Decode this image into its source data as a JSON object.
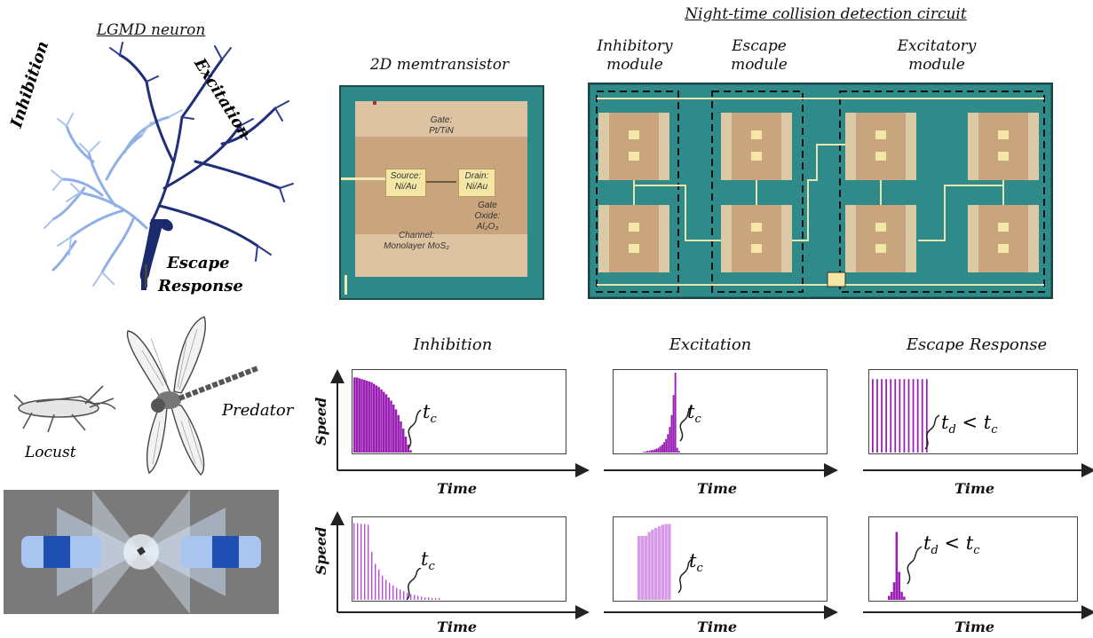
{
  "neuron": {
    "title": "LGMD neuron",
    "inhibition": "Inhibition",
    "excitation": "Excitation",
    "escape_line1": "Escape",
    "escape_line2": "Response"
  },
  "memtransistor": {
    "title": "2D memtransistor",
    "gate_line1": "Gate:",
    "gate_line2": "Pt/TiN",
    "source_line1": "Source:",
    "source_line2": "Ni/Au",
    "drain_line1": "Drain:",
    "drain_line2": "Ni/Au",
    "oxide_line1": "Gate",
    "oxide_line2": "Oxide:",
    "oxide_line3": "Al₂O₃",
    "channel_line1": "Channel:",
    "channel_line2": "Monolayer MoS₂"
  },
  "circuit": {
    "title": "Night-time collision detection circuit",
    "modules": [
      {
        "line1": "Inhibitory",
        "line2": "module"
      },
      {
        "line1": "Escape",
        "line2": "module"
      },
      {
        "line1": "Excitatory",
        "line2": "module"
      }
    ]
  },
  "animals": {
    "locust": "Locust",
    "predator": "Predator"
  },
  "plots": {
    "col_titles": [
      "Inhibition",
      "Excitation",
      "Escape Response"
    ],
    "ylabel": "Speed",
    "xlabel": "Time",
    "tc": "t",
    "tc_sub": "c",
    "td": "t",
    "td_sub": "d",
    "lt": "<"
  },
  "colors": {
    "purple": "#9a1fb5",
    "light_purple": "#d79ae6",
    "chip_teal": "#2f8a8a",
    "navy": "#1a2a6c"
  },
  "chart_data": [
    {
      "type": "bar",
      "panel": "inhibition-top",
      "values": [
        0.94,
        0.94,
        0.93,
        0.92,
        0.91,
        0.9,
        0.89,
        0.88,
        0.86,
        0.84,
        0.82,
        0.79,
        0.76,
        0.73,
        0.69,
        0.65,
        0.6,
        0.54,
        0.47,
        0.39,
        0.3,
        0.2,
        0.1,
        0.03
      ],
      "xlabel": "Time",
      "ylabel": "Speed"
    },
    {
      "type": "bar",
      "panel": "excitation-top",
      "values": [
        0.01,
        0.01,
        0.02,
        0.02,
        0.03,
        0.03,
        0.04,
        0.05,
        0.06,
        0.08,
        0.1,
        0.13,
        0.17,
        0.23,
        0.32,
        0.47,
        0.72,
        1.0,
        0.06,
        0.02
      ],
      "xlabel": "Time",
      "ylabel": "Speed"
    },
    {
      "type": "bar",
      "panel": "escape-top",
      "values": [
        0.92,
        0.92,
        0.92,
        0.92,
        0.92,
        0.92,
        0.92,
        0.92,
        0.92,
        0.92,
        0.92,
        0.92,
        0.92
      ],
      "xlabel": "Time",
      "ylabel": "Speed"
    },
    {
      "type": "bar",
      "panel": "inhibition-bottom",
      "values": [
        0.96,
        0.96,
        0.95,
        0.95,
        0.94,
        0.6,
        0.45,
        0.38,
        0.3,
        0.25,
        0.21,
        0.18,
        0.15,
        0.13,
        0.11,
        0.09,
        0.07,
        0.06,
        0.05,
        0.04,
        0.03,
        0.03,
        0.02,
        0.02,
        0.02
      ],
      "xlabel": "Time",
      "ylabel": "Speed"
    },
    {
      "type": "bar",
      "panel": "excitation-bottom",
      "values": [
        0.8,
        0.8,
        0.8,
        0.85,
        0.88,
        0.9,
        0.92,
        0.94,
        0.95,
        0.95
      ],
      "xlabel": "Time",
      "ylabel": "Speed"
    },
    {
      "type": "bar",
      "panel": "escape-bottom",
      "values": [
        0.05,
        0.1,
        0.22,
        0.85,
        0.35,
        0.1,
        0.04
      ],
      "xlabel": "Time",
      "ylabel": "Speed"
    }
  ]
}
